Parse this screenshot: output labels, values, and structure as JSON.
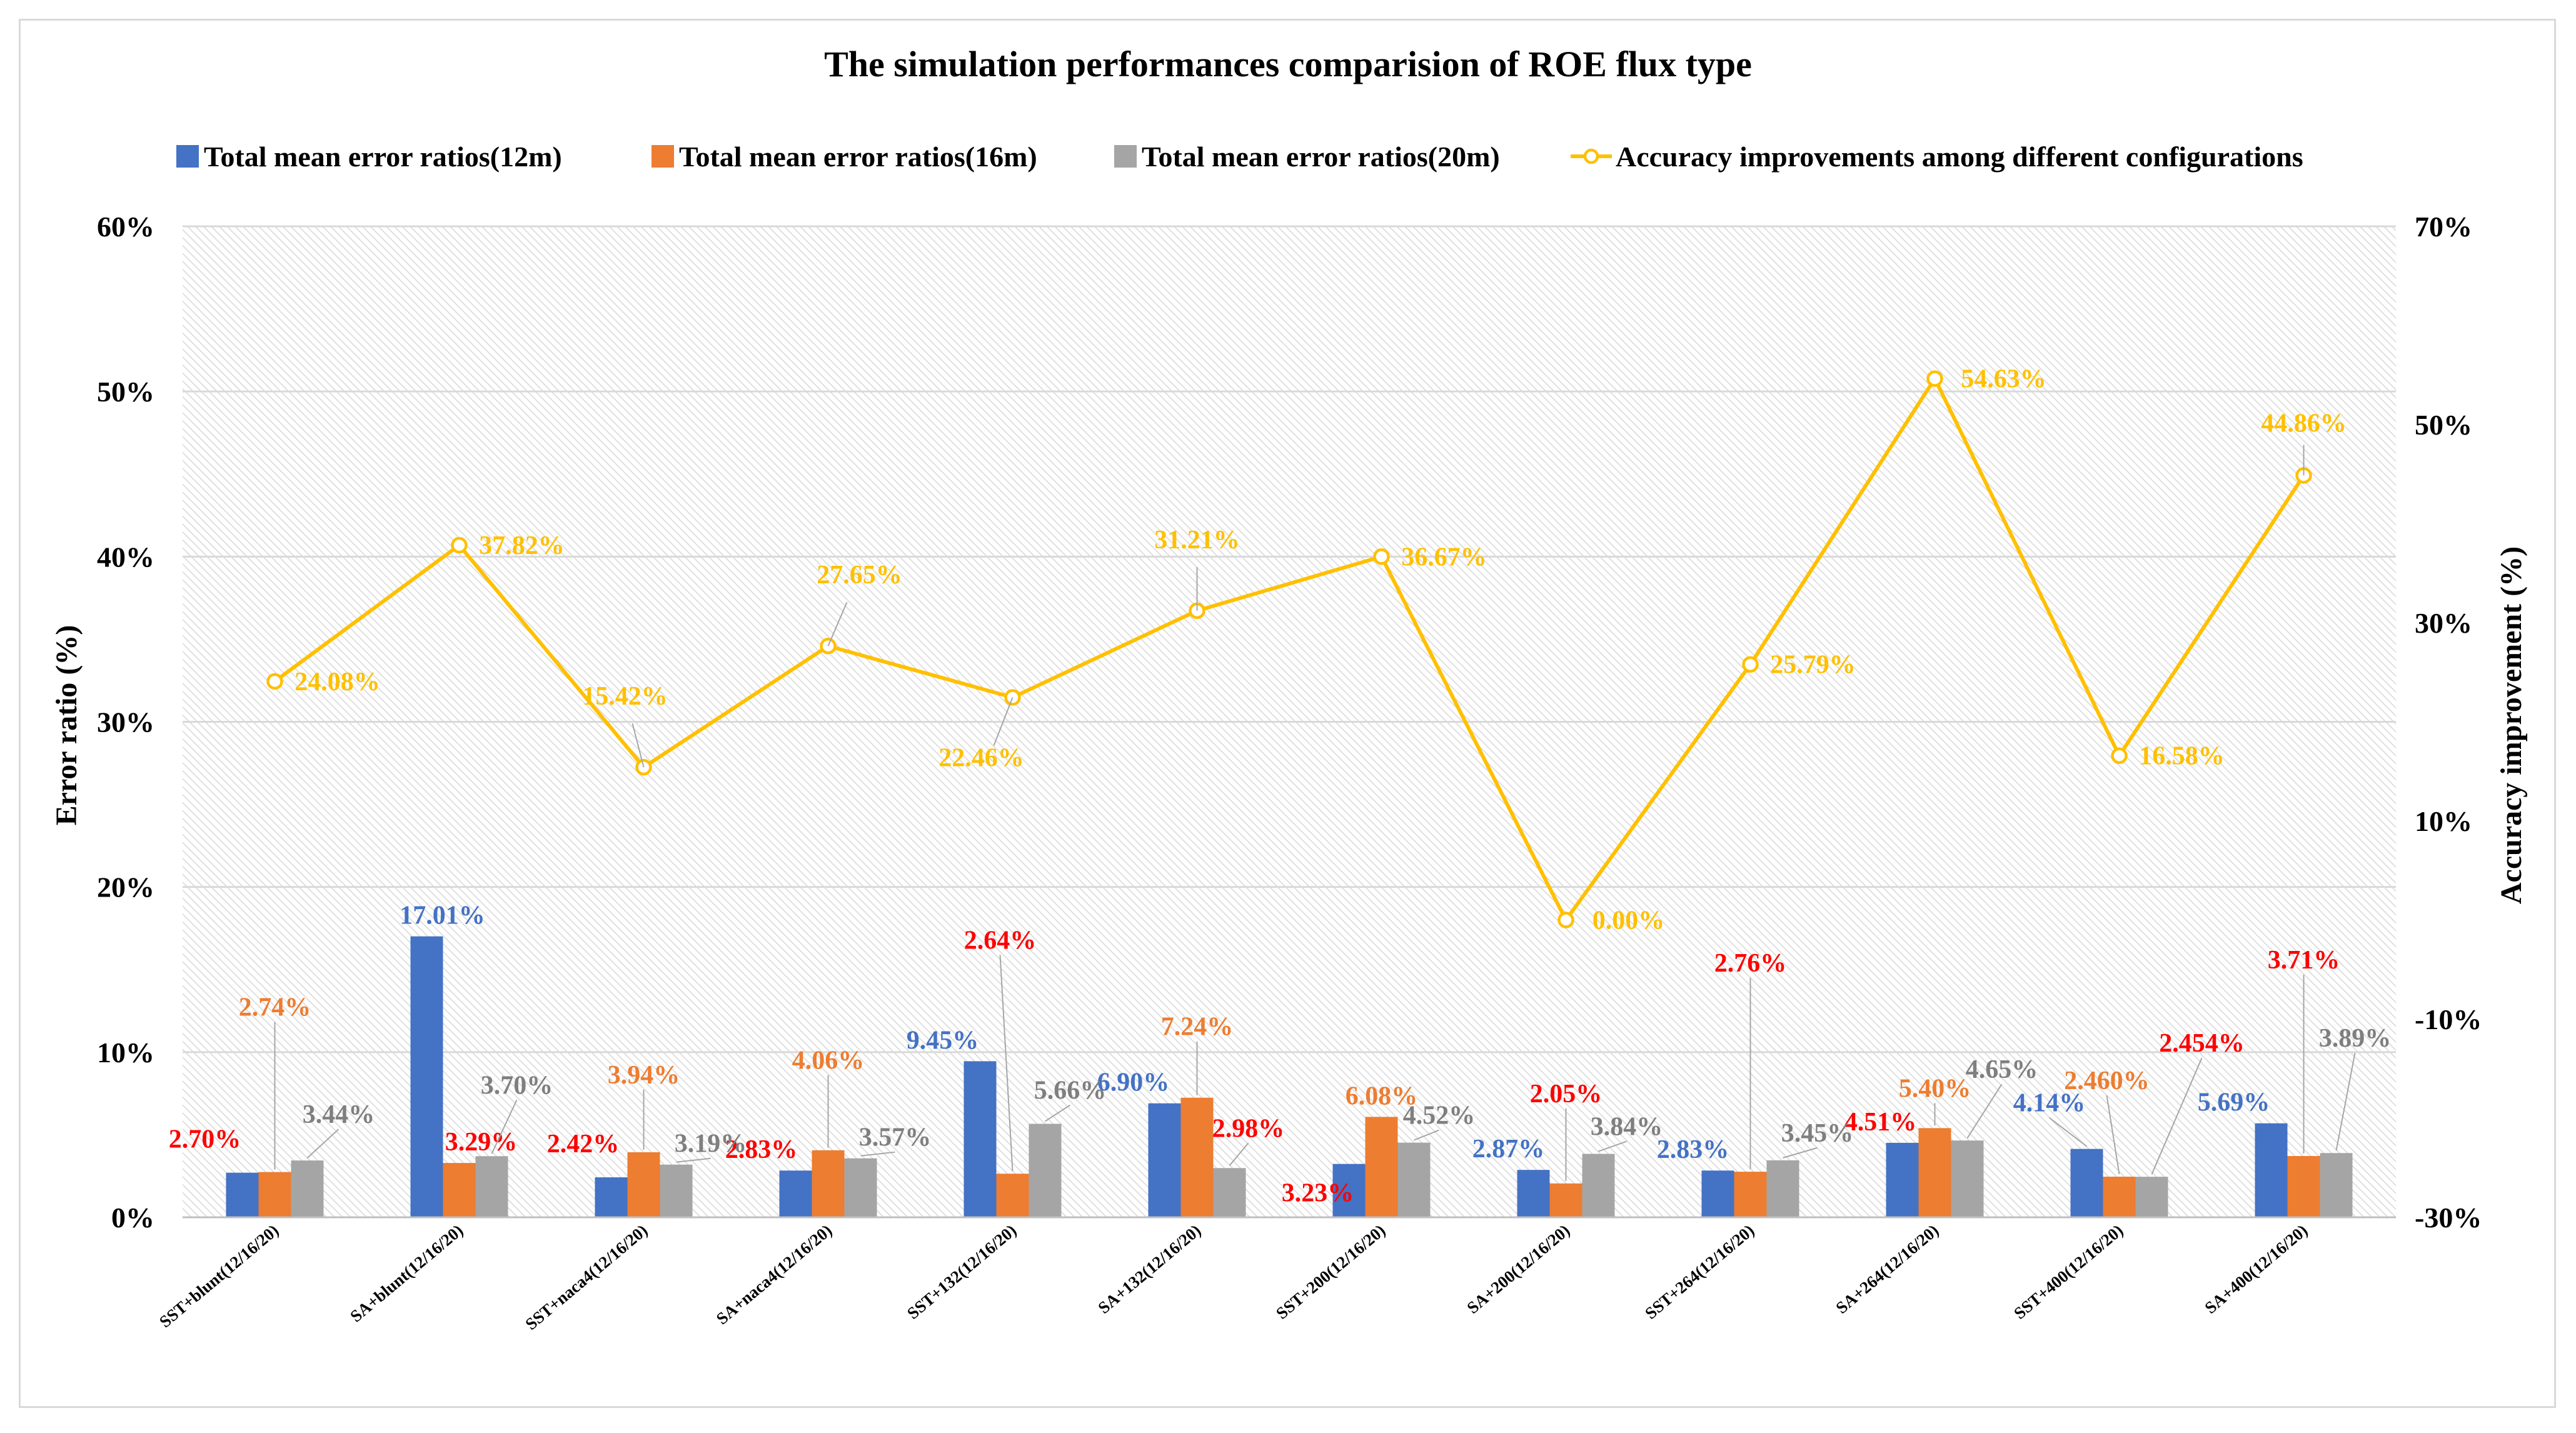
{
  "chart_data": {
    "type": "bar",
    "title": "The simulation performances comparision of ROE flux type",
    "xlabel": "",
    "ylabel": "Error ratio (%)",
    "y2label": "Accuracy improvement (%)",
    "ylim": [
      0,
      60
    ],
    "y2lim": [
      -30,
      70
    ],
    "yticks": [
      "0%",
      "10%",
      "20%",
      "30%",
      "40%",
      "50%",
      "60%"
    ],
    "y2ticks": [
      "-30%",
      "-10%",
      "10%",
      "30%",
      "50%",
      "70%"
    ],
    "grid": true,
    "legend_position": "top",
    "categories": [
      "SST+blunt(12/16/20)",
      "SA+blunt(12/16/20)",
      "SST+naca4(12/16/20)",
      "SA+naca4(12/16/20)",
      "SST+132(12/16/20)",
      "SA+132(12/16/20)",
      "SST+200(12/16/20)",
      "SA+200(12/16/20)",
      "SST+264(12/16/20)",
      "SA+264(12/16/20)",
      "SST+400(12/16/20)",
      "SA+400(12/16/20)"
    ],
    "series": [
      {
        "name": "Total mean error ratios(12m)",
        "type": "bar",
        "axis": "left",
        "color": "#4472c4",
        "values": [
          2.7,
          17.01,
          2.42,
          2.83,
          9.45,
          6.9,
          3.23,
          2.87,
          2.83,
          4.51,
          4.14,
          5.69
        ],
        "labels": [
          "2.70%",
          "17.01%",
          "2.42%",
          "2.83%",
          "9.45%",
          "6.90%",
          "3.23%",
          "2.87%",
          "2.83%",
          "4.51%",
          "4.14%",
          "5.69%"
        ]
      },
      {
        "name": "Total mean error ratios(16m)",
        "type": "bar",
        "axis": "left",
        "color": "#ed7d31",
        "values": [
          2.74,
          3.29,
          3.94,
          4.06,
          2.64,
          7.24,
          6.08,
          2.05,
          2.76,
          5.4,
          2.46,
          3.71
        ],
        "labels": [
          "2.74%",
          "3.29%",
          "3.94%",
          "4.06%",
          "2.64%",
          "7.24%",
          "6.08%",
          "2.05%",
          "2.76%",
          "5.40%",
          "2.460%",
          "3.71%"
        ]
      },
      {
        "name": "Total mean error ratios(20m)",
        "type": "bar",
        "axis": "left",
        "color": "#a5a5a5",
        "values": [
          3.44,
          3.7,
          3.19,
          3.57,
          5.66,
          2.98,
          4.52,
          3.84,
          3.45,
          4.65,
          2.454,
          3.89
        ],
        "labels": [
          "3.44%",
          "3.70%",
          "3.19%",
          "3.57%",
          "5.66%",
          "2.98%",
          "4.52%",
          "3.84%",
          "3.45%",
          "4.65%",
          "2.454%",
          "3.89%"
        ]
      },
      {
        "name": "Accuracy improvements among different configurations",
        "type": "line",
        "axis": "right",
        "color": "#ffc000",
        "values": [
          24.08,
          37.82,
          15.42,
          27.65,
          22.46,
          31.21,
          36.67,
          0.0,
          25.79,
          54.63,
          16.58,
          44.86
        ],
        "labels": [
          "24.08%",
          "37.82%",
          "15.42%",
          "27.65%",
          "22.46%",
          "31.21%",
          "36.67%",
          "0.00%",
          "25.79%",
          "54.63%",
          "16.58%",
          "44.86%"
        ]
      }
    ],
    "highlight_color": "#ff0000"
  }
}
